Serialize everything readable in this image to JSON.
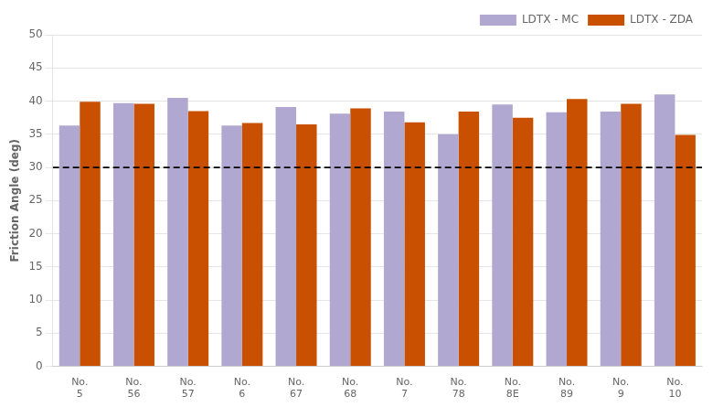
{
  "chart_data": {
    "type": "bar",
    "categories": [
      "No.\n5",
      "No.\n56",
      "No.\n57",
      "No.\n6",
      "No.\n67",
      "No.\n68",
      "No.\n7",
      "No.\n78",
      "No.\n8E",
      "No.\n89",
      "No.\n9",
      "No.\n10"
    ],
    "series": [
      {
        "name": "LDTX - MC",
        "color": "#b0a8d0",
        "values": [
          36.3,
          39.7,
          40.5,
          36.3,
          39.1,
          38.1,
          38.4,
          35.0,
          39.5,
          38.3,
          38.4,
          41.0
        ]
      },
      {
        "name": "LDTX - ZDA",
        "color": "#c85000",
        "values": [
          39.9,
          39.6,
          38.5,
          36.7,
          36.5,
          38.9,
          36.8,
          38.4,
          37.5,
          40.3,
          39.6,
          34.9
        ]
      }
    ],
    "ylabel": "Friction Angle (deg)",
    "ylim": [
      0,
      50
    ],
    "yticks": [
      0,
      5,
      10,
      15,
      20,
      25,
      30,
      35,
      40,
      45,
      50
    ],
    "hline": {
      "value": 30,
      "color": "#000000",
      "line_style": "dashed"
    },
    "grid": true,
    "legend": "upper right"
  }
}
